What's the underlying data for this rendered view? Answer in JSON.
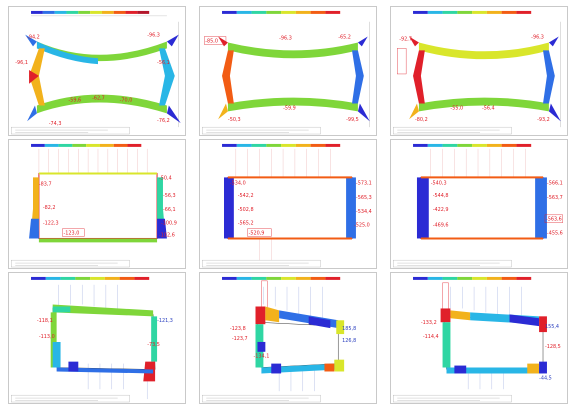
{
  "rows": [
    {
      "panels": [
        {
          "id": "p11",
          "labels": [
            "-94,2",
            "-96,3",
            "-59,6",
            "-62,7",
            "-70,0",
            "-56,1",
            "-74,3",
            "-76,2",
            "-96,1"
          ]
        },
        {
          "id": "p12",
          "labels": [
            "-85,0",
            "-65,2",
            "-96,3",
            "-59,9",
            "-50,3",
            "-99,5"
          ]
        },
        {
          "id": "p13",
          "labels": [
            "-92,7",
            "-96,3",
            "-55,0",
            "-56,4",
            "-80,2",
            "-93,2"
          ]
        }
      ]
    },
    {
      "panels": [
        {
          "id": "p21",
          "labels": [
            "-50,4",
            "-83,7",
            "-56,3",
            "-82,2",
            "-66,1",
            "-122,3",
            "-100,9",
            "-123,0",
            "-102,6"
          ]
        },
        {
          "id": "p22",
          "labels": [
            "-534,0",
            "-573,1",
            "-542,2",
            "-565,3",
            "-502,8",
            "-534,4",
            "-565,2",
            "-520,9",
            "-525,0"
          ]
        },
        {
          "id": "p23",
          "labels": [
            "-540,3",
            "-566,1",
            "-544,8",
            "-563,7",
            "-422,9",
            "-563,6",
            "-469,6",
            "-455,6"
          ]
        }
      ]
    },
    {
      "panels": [
        {
          "id": "p31",
          "labels": [
            "-118,1",
            "-121,3",
            "-113,0",
            "-73,5"
          ]
        },
        {
          "id": "p32",
          "labels": [
            "-123,8",
            "-123,7",
            "185,8",
            "-134,1",
            "126,8"
          ]
        },
        {
          "id": "p33",
          "labels": [
            "-133,2",
            "-114,4",
            "155,4",
            "-128,5",
            "-44,5"
          ]
        }
      ]
    }
  ],
  "colors": {
    "scale": [
      "#2b2bd4",
      "#2f6fe6",
      "#29b6e6",
      "#2fd6a3",
      "#7fd63a",
      "#d9e62b",
      "#f2b21c",
      "#f25c14",
      "#e0202a"
    ],
    "frame": "#e0202a",
    "blue": "#2a3fbf"
  }
}
